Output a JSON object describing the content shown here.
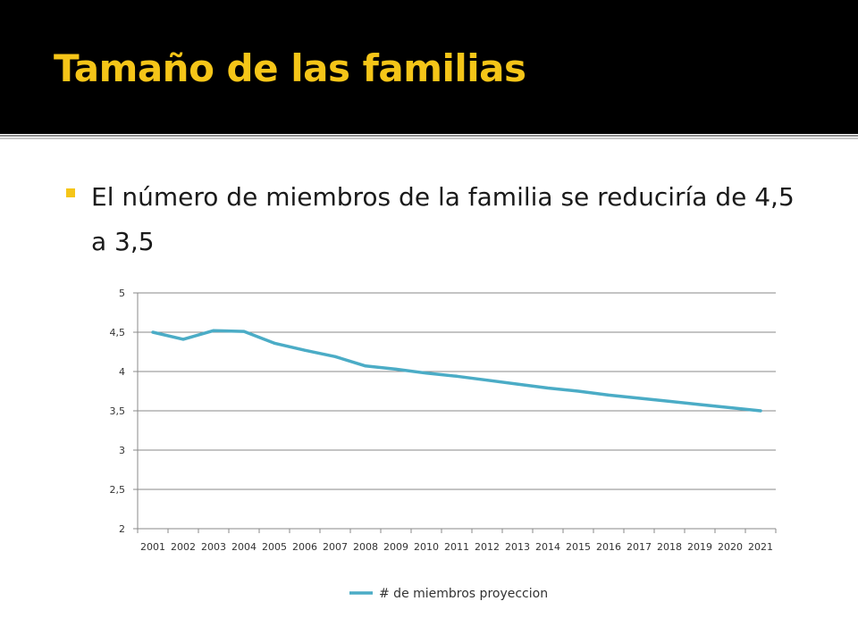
{
  "slide": {
    "title": "Tamaño de las familias",
    "bullet": "El número de miembros de la familia se reduciría de 4,5 a 3,5",
    "colors": {
      "title": "#f5c518",
      "title_bar": "#000000",
      "bullet": "#f5c518",
      "series": "#4bacc6"
    }
  },
  "chart_data": {
    "type": "line",
    "title": "",
    "xlabel": "",
    "ylabel": "",
    "ylim": [
      2,
      5
    ],
    "y_ticks": [
      "2",
      "2,5",
      "3",
      "3,5",
      "4",
      "4,5",
      "5"
    ],
    "y_tick_values": [
      2,
      2.5,
      3,
      3.5,
      4,
      4.5,
      5
    ],
    "categories": [
      "2001",
      "2002",
      "2003",
      "2004",
      "2005",
      "2006",
      "2007",
      "2008",
      "2009",
      "2010",
      "2011",
      "2012",
      "2013",
      "2014",
      "2015",
      "2016",
      "2017",
      "2018",
      "2019",
      "2020",
      "2021"
    ],
    "grid": "horizontal",
    "legend_position": "bottom",
    "series": [
      {
        "name": "# de miembros proyeccion",
        "color": "#4bacc6",
        "values": [
          4.5,
          4.41,
          4.52,
          4.51,
          4.36,
          4.27,
          4.19,
          4.07,
          4.03,
          3.98,
          3.94,
          3.89,
          3.84,
          3.79,
          3.75,
          3.7,
          3.66,
          3.62,
          3.58,
          3.54,
          3.5
        ]
      }
    ]
  }
}
